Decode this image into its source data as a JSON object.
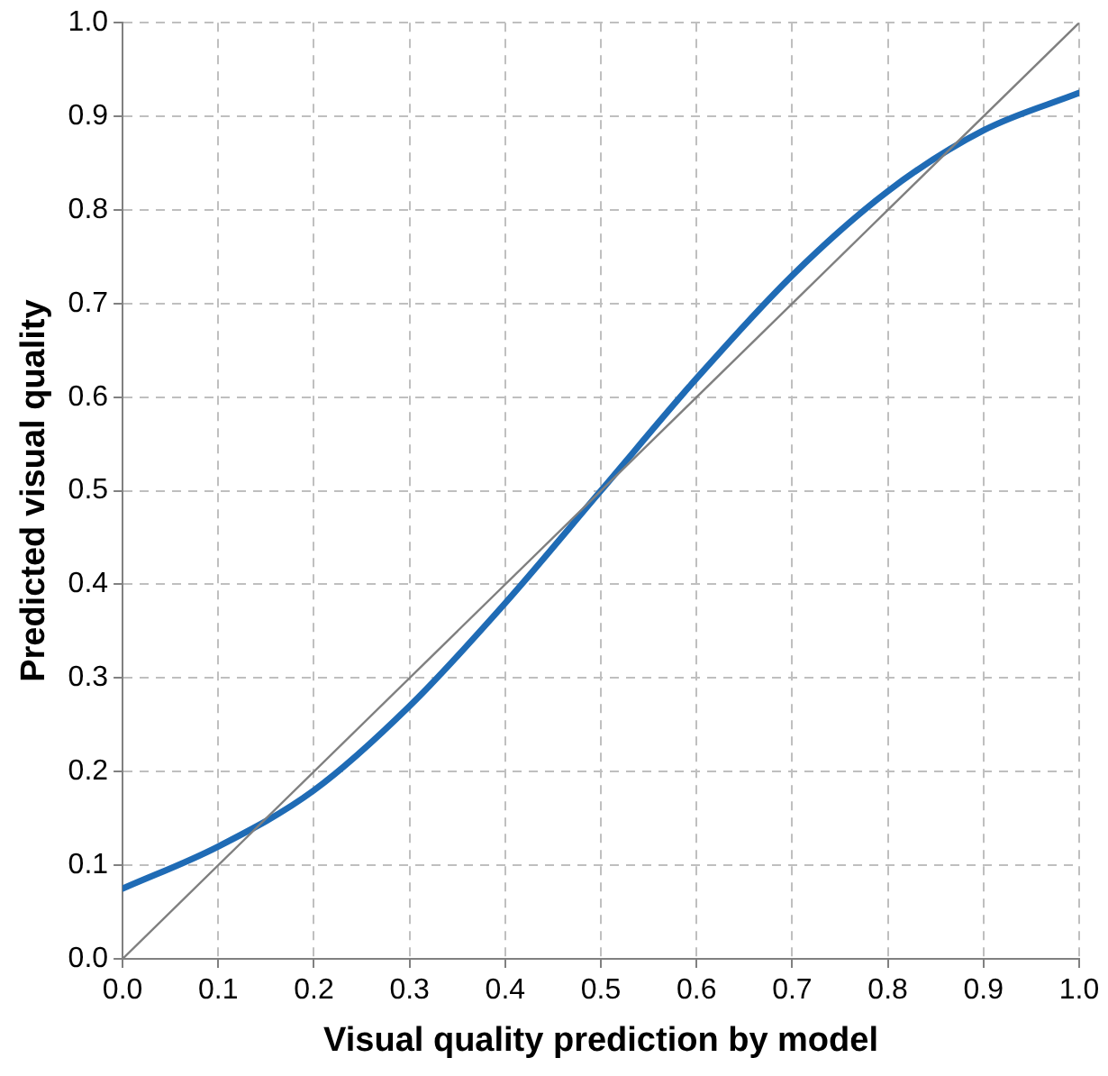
{
  "chart_data": {
    "type": "line",
    "xlabel": "Visual quality prediction by model",
    "ylabel": "Predicted visual quality",
    "series": [
      {
        "color": "#808080",
        "x": [
          0,
          1
        ],
        "values": [
          0,
          1
        ]
      },
      {
        "color": "#1f6bb5",
        "x": [
          0,
          0.1,
          0.2,
          0.3,
          0.4,
          0.5,
          0.6,
          0.7,
          0.8,
          0.9,
          1.0
        ],
        "values": [
          0.075,
          0.12,
          0.18,
          0.27,
          0.38,
          0.5,
          0.62,
          0.73,
          0.82,
          0.885,
          0.925
        ]
      }
    ],
    "xlim": [
      0,
      1
    ],
    "ylim": [
      0,
      1
    ],
    "xticks": [
      {
        "value": 0,
        "label": "0.0"
      },
      {
        "value": 0.1,
        "label": "0.1"
      },
      {
        "value": 0.2,
        "label": "0.2"
      },
      {
        "value": 0.3,
        "label": "0.3"
      },
      {
        "value": 0.4,
        "label": "0.4"
      },
      {
        "value": 0.5,
        "label": "0.5"
      },
      {
        "value": 0.6,
        "label": "0.6"
      },
      {
        "value": 0.7,
        "label": "0.7"
      },
      {
        "value": 0.8,
        "label": "0.8"
      },
      {
        "value": 0.9,
        "label": "0.9"
      },
      {
        "value": 1,
        "label": "1.0"
      }
    ],
    "yticks": [
      {
        "value": 0,
        "label": "0.0"
      },
      {
        "value": 0.1,
        "label": "0.1"
      },
      {
        "value": 0.2,
        "label": "0.2"
      },
      {
        "value": 0.3,
        "label": "0.3"
      },
      {
        "value": 0.4,
        "label": "0.4"
      },
      {
        "value": 0.5,
        "label": "0.5"
      },
      {
        "value": 0.6,
        "label": "0.6"
      },
      {
        "value": 0.7,
        "label": "0.7"
      },
      {
        "value": 0.8,
        "label": "0.8"
      },
      {
        "value": 0.9,
        "label": "0.9"
      },
      {
        "value": 1,
        "label": "1.0"
      }
    ],
    "grid": true,
    "marker": "none",
    "line_style": "solid"
  }
}
